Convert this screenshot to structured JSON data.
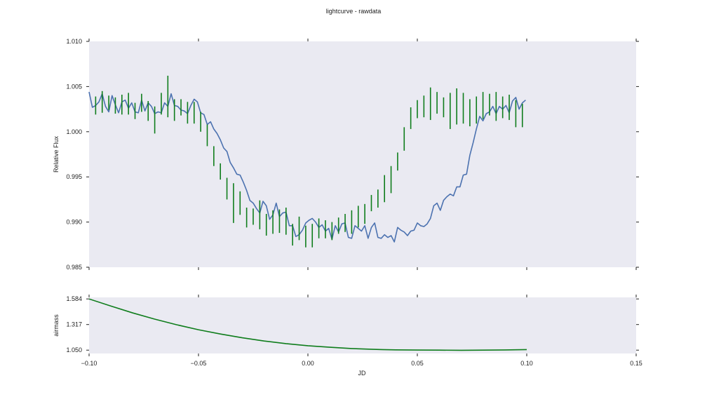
{
  "chart_data": [
    {
      "type": "line",
      "title": "lightcurve - rawdata",
      "xlabel": "",
      "ylabel": "Relative Flux",
      "xlim": [
        -0.1,
        0.15
      ],
      "ylim": [
        0.985,
        1.01
      ],
      "yticks": [
        "0.985",
        "0.990",
        "0.995",
        "1.000",
        "1.005",
        "1.010"
      ],
      "grid": false,
      "background": "#eaeaf2",
      "series": [
        {
          "style": "line",
          "color": "#4c72b0",
          "x": [
            -0.1,
            -0.0985,
            -0.097,
            -0.0955,
            -0.094,
            -0.0925,
            -0.091,
            -0.0895,
            -0.088,
            -0.0865,
            -0.085,
            -0.0835,
            -0.082,
            -0.0805,
            -0.079,
            -0.0775,
            -0.076,
            -0.0745,
            -0.073,
            -0.0715,
            -0.07,
            -0.0685,
            -0.067,
            -0.0655,
            -0.064,
            -0.0625,
            -0.061,
            -0.0595,
            -0.058,
            -0.0565,
            -0.055,
            -0.0535,
            -0.052,
            -0.0505,
            -0.049,
            -0.0475,
            -0.046,
            -0.0445,
            -0.043,
            -0.0415,
            -0.04,
            -0.0385,
            -0.037,
            -0.0355,
            -0.034,
            -0.0325,
            -0.031,
            -0.0295,
            -0.028,
            -0.0265,
            -0.025,
            -0.0235,
            -0.022,
            -0.0205,
            -0.019,
            -0.0175,
            -0.016,
            -0.0145,
            -0.013,
            -0.0115,
            -0.01,
            -0.0085,
            -0.007,
            -0.0055,
            -0.004,
            -0.0025,
            -0.001,
            0.0005,
            0.002,
            0.0035,
            0.005,
            0.0065,
            0.008,
            0.0095,
            0.011,
            0.0125,
            0.014,
            0.0155,
            0.017,
            0.0185,
            0.02,
            0.0215,
            0.023,
            0.0245,
            0.026,
            0.0275,
            0.029,
            0.0305,
            0.032,
            0.0335,
            0.035,
            0.0365,
            0.038,
            0.0395,
            0.041,
            0.0425,
            0.044,
            0.0455,
            0.047,
            0.0485,
            0.05,
            0.0515,
            0.053,
            0.0545,
            0.056,
            0.0575,
            0.059,
            0.0605,
            0.062,
            0.0635,
            0.065,
            0.0665,
            0.068,
            0.0695,
            0.071,
            0.0725,
            0.074,
            0.0755,
            0.077,
            0.0785,
            0.08,
            0.0815,
            0.083,
            0.0845,
            0.086,
            0.0875,
            0.089,
            0.0905,
            0.092,
            0.0935,
            0.095,
            0.0965,
            0.098,
            0.0995
          ],
          "y": [
            1.0044,
            1.0027,
            1.0029,
            1.0033,
            1.0042,
            1.0028,
            1.0022,
            1.004,
            1.003,
            1.0021,
            1.0033,
            1.0035,
            1.0026,
            1.0032,
            1.0022,
            1.0021,
            1.0035,
            1.0023,
            1.0032,
            1.0028,
            1.002,
            1.0022,
            1.0021,
            1.0032,
            1.0028,
            1.0042,
            1.0029,
            1.0028,
            1.0024,
            1.0023,
            1.002,
            1.0029,
            1.0036,
            1.0033,
            1.0021,
            1.0019,
            1.0008,
            1.0011,
            1.0003,
            0.9998,
            0.9991,
            0.9982,
            0.9978,
            0.9966,
            0.996,
            0.9953,
            0.9952,
            0.9944,
            0.9935,
            0.9924,
            0.9921,
            0.9915,
            0.991,
            0.9923,
            0.9918,
            0.9903,
            0.9908,
            0.9921,
            0.9906,
            0.991,
            0.9911,
            0.9896,
            0.9896,
            0.9884,
            0.9886,
            0.9891,
            0.9899,
            0.9902,
            0.9904,
            0.99,
            0.9894,
            0.9897,
            0.989,
            0.9893,
            0.9881,
            0.9896,
            0.9889,
            0.9898,
            0.9899,
            0.9883,
            0.9882,
            0.9896,
            0.9893,
            0.989,
            0.9896,
            0.9882,
            0.9894,
            0.9899,
            0.9883,
            0.9882,
            0.9886,
            0.9883,
            0.9885,
            0.9878,
            0.9894,
            0.9891,
            0.9889,
            0.9885,
            0.989,
            0.9891,
            0.9899,
            0.9896,
            0.9895,
            0.9898,
            0.9904,
            0.9918,
            0.9921,
            0.9913,
            0.9924,
            0.9928,
            0.9931,
            0.9929,
            0.9939,
            0.9939,
            0.9952,
            0.9953,
            0.9974,
            0.9988,
            1.0003,
            1.0017,
            1.0012,
            1.002,
            1.0022,
            1.0028,
            1.002,
            1.0028,
            1.0025,
            1.0029,
            1.0021,
            1.0034,
            1.0038,
            1.0025,
            1.0032,
            1.0035
          ]
        },
        {
          "style": "errorbar",
          "color": "#0f7d1c",
          "x": [
            -0.097,
            -0.094,
            -0.091,
            -0.088,
            -0.085,
            -0.082,
            -0.079,
            -0.076,
            -0.073,
            -0.07,
            -0.067,
            -0.064,
            -0.061,
            -0.058,
            -0.055,
            -0.052,
            -0.049,
            -0.046,
            -0.043,
            -0.04,
            -0.037,
            -0.034,
            -0.031,
            -0.028,
            -0.025,
            -0.022,
            -0.019,
            -0.016,
            -0.013,
            -0.01,
            -0.007,
            -0.004,
            -0.001,
            0.002,
            0.005,
            0.008,
            0.011,
            0.014,
            0.017,
            0.02,
            0.023,
            0.026,
            0.029,
            0.032,
            0.035,
            0.038,
            0.041,
            0.044,
            0.047,
            0.05,
            0.053,
            0.056,
            0.059,
            0.062,
            0.065,
            0.068,
            0.071,
            0.074,
            0.077,
            0.08,
            0.083,
            0.086,
            0.089,
            0.092,
            0.095,
            0.098
          ],
          "y": [
            1.0029,
            1.0033,
            1.0032,
            1.0029,
            1.003,
            1.0031,
            1.0023,
            1.0032,
            1.0023,
            1.0013,
            1.0031,
            1.0039,
            1.0024,
            1.0027,
            1.0021,
            1.0021,
            1.0011,
            0.9996,
            0.9973,
            0.9956,
            0.9937,
            0.9921,
            0.9921,
            0.9905,
            0.9906,
            0.9908,
            0.9897,
            0.99,
            0.9901,
            0.9901,
            0.9886,
            0.9893,
            0.9884,
            0.9885,
            0.9893,
            0.9892,
            0.989,
            0.9896,
            0.9899,
            0.99,
            0.9906,
            0.9909,
            0.9921,
            0.9926,
            0.9937,
            0.9947,
            0.9967,
            0.9992,
            1.0015,
            1.0025,
            1.0028,
            1.0031,
            1.0032,
            1.0027,
            1.0023,
            1.0028,
            1.0026,
            1.0021,
            1.0024,
            1.0029,
            1.003,
            1.0028,
            1.0027,
            1.0027,
            1.002,
            1.0018
          ],
          "err": [
            0.001,
            0.0012,
            0.0008,
            0.0009,
            0.0011,
            0.0012,
            0.0009,
            0.001,
            0.0011,
            0.0015,
            0.0012,
            0.0023,
            0.0012,
            0.0009,
            0.0012,
            0.0012,
            0.0011,
            0.0012,
            0.0011,
            0.0009,
            0.0012,
            0.0022,
            0.0013,
            0.0011,
            0.0009,
            0.0016,
            0.0012,
            0.0013,
            0.0013,
            0.0015,
            0.0012,
            0.0013,
            0.0012,
            0.0013,
            0.0011,
            0.001,
            0.001,
            0.0009,
            0.001,
            0.0013,
            0.0012,
            0.0011,
            0.0009,
            0.001,
            0.0015,
            0.0015,
            0.001,
            0.0013,
            0.0012,
            0.001,
            0.0012,
            0.0018,
            0.0012,
            0.0011,
            0.002,
            0.002,
            0.0017,
            0.0015,
            0.0015,
            0.0015,
            0.0012,
            0.0016,
            0.0012,
            0.0014,
            0.0015,
            0.0013
          ]
        }
      ]
    },
    {
      "type": "line",
      "title": "",
      "xlabel": "JD",
      "ylabel": "airmass",
      "xlim": [
        -0.1,
        0.15
      ],
      "ylim": [
        1.015,
        1.6
      ],
      "xticks": [
        "−0.10",
        "−0.05",
        "0.00",
        "0.05",
        "0.10",
        "0.15"
      ],
      "yticks": [
        "1.050",
        "1.317",
        "1.584"
      ],
      "grid": false,
      "background": "#eaeaf2",
      "series": [
        {
          "style": "line",
          "color": "#0f7d1c",
          "x": [
            -0.1,
            -0.09,
            -0.08,
            -0.07,
            -0.06,
            -0.05,
            -0.04,
            -0.03,
            -0.02,
            -0.01,
            0.0,
            0.01,
            0.02,
            0.03,
            0.034,
            0.04,
            0.05,
            0.06,
            0.07,
            0.08,
            0.09,
            0.1
          ],
          "y": [
            1.584,
            1.509,
            1.438,
            1.373,
            1.315,
            1.263,
            1.218,
            1.179,
            1.145,
            1.118,
            1.096,
            1.08,
            1.067,
            1.058,
            1.056,
            1.053,
            1.051,
            1.05,
            1.049,
            1.05,
            1.052,
            1.056
          ]
        }
      ]
    }
  ]
}
